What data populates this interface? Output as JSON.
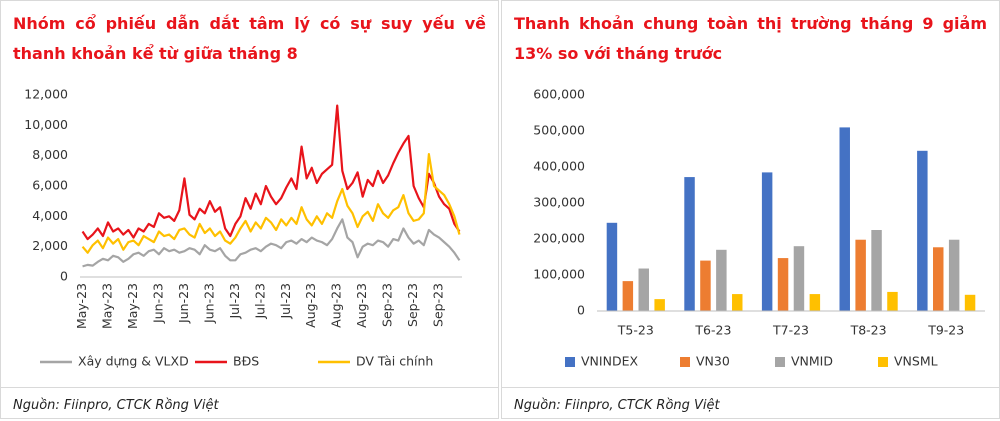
{
  "chart_data": [
    {
      "type": "line",
      "title": "Nhóm cổ phiếu dẫn dắt tâm lý có sự suy yếu về thanh khoản kể từ giữa tháng 8",
      "source": "Nguồn: Fiinpro, CTCK Rồng Việt",
      "categories": [
        "May-23",
        null,
        null,
        null,
        null,
        "May-23",
        null,
        null,
        null,
        null,
        "May-23",
        null,
        null,
        null,
        null,
        "Jun-23",
        null,
        null,
        null,
        null,
        "Jun-23",
        null,
        null,
        null,
        null,
        "Jun-23",
        null,
        null,
        null,
        null,
        "Jul-23",
        null,
        null,
        null,
        null,
        "Jul-23",
        null,
        null,
        null,
        null,
        "Jul-23",
        null,
        null,
        null,
        null,
        "Aug-23",
        null,
        null,
        null,
        null,
        "Aug-23",
        null,
        null,
        null,
        null,
        "Aug-23",
        null,
        null,
        null,
        null,
        "Sep-23",
        null,
        null,
        null,
        null,
        "Sep-23",
        null,
        null,
        null,
        null,
        "Sep-23",
        null,
        null,
        null,
        null
      ],
      "series": [
        {
          "name": "Xây dựng & VLXD",
          "color": "#a5a5a5",
          "values": [
            700,
            800,
            750,
            1000,
            1200,
            1100,
            1400,
            1300,
            1000,
            1200,
            1500,
            1600,
            1400,
            1700,
            1800,
            1500,
            1900,
            1700,
            1800,
            1600,
            1700,
            1900,
            1800,
            1500,
            2100,
            1800,
            1700,
            1900,
            1400,
            1100,
            1100,
            1500,
            1600,
            1800,
            1900,
            1700,
            2000,
            2200,
            2100,
            1900,
            2300,
            2400,
            2200,
            2500,
            2300,
            2600,
            2400,
            2300,
            2100,
            2500,
            3200,
            3800,
            2600,
            2300,
            1300,
            2000,
            2200,
            2100,
            2400,
            2300,
            2000,
            2500,
            2400,
            3200,
            2600,
            2200,
            2400,
            2100,
            3100,
            2800,
            2600,
            2300,
            2000,
            1600,
            1100
          ]
        },
        {
          "name": "BĐS",
          "color": "#e8141b",
          "values": [
            3000,
            2500,
            2800,
            3200,
            2700,
            3600,
            3000,
            3200,
            2800,
            3100,
            2600,
            3200,
            3000,
            3500,
            3300,
            4200,
            3900,
            4000,
            3700,
            4400,
            6500,
            4100,
            3800,
            4500,
            4200,
            5000,
            4300,
            4600,
            3200,
            2700,
            3500,
            4000,
            5200,
            4500,
            5500,
            4800,
            6000,
            5300,
            4800,
            5200,
            5900,
            6500,
            5800,
            8600,
            6500,
            7200,
            6200,
            6800,
            7100,
            7400,
            11300,
            7000,
            5800,
            6200,
            6900,
            5300,
            6400,
            6000,
            7000,
            6200,
            6700,
            7500,
            8200,
            8800,
            9300,
            6000,
            5200,
            4600,
            6800,
            6200,
            5300,
            4800,
            4500,
            3500,
            3000
          ]
        },
        {
          "name": "DV Tài chính",
          "color": "#ffc000",
          "values": [
            2000,
            1600,
            2100,
            2400,
            1900,
            2600,
            2200,
            2500,
            1800,
            2300,
            2400,
            2100,
            2700,
            2500,
            2300,
            3000,
            2700,
            2800,
            2500,
            3100,
            3200,
            2800,
            2600,
            3500,
            2900,
            3200,
            2700,
            3000,
            2400,
            2200,
            2600,
            3200,
            3700,
            3000,
            3600,
            3200,
            3900,
            3600,
            3100,
            3800,
            3400,
            3900,
            3500,
            4600,
            3800,
            3400,
            4000,
            3500,
            4200,
            3900,
            5000,
            5800,
            4700,
            4200,
            3300,
            4000,
            4300,
            3700,
            4800,
            4200,
            3900,
            4400,
            4600,
            5400,
            4200,
            3700,
            3800,
            4200,
            8100,
            6000,
            5700,
            5400,
            4800,
            4000,
            2800
          ]
        }
      ],
      "ylim": [
        0,
        12000
      ],
      "yticks": [
        0,
        {
          "value": 2000,
          "label": "2,000"
        },
        {
          "value": 4000,
          "label": "4,000"
        },
        {
          "value": 6000,
          "label": "6,000"
        },
        {
          "value": 8000,
          "label": "8,000"
        },
        {
          "value": 10000,
          "label": "10,000"
        },
        {
          "value": 12000,
          "label": "12,000"
        }
      ],
      "grid": false,
      "legend": "bottom"
    },
    {
      "type": "bar",
      "title": "Thanh khoản chung toàn thị trường tháng 9 giảm 13% so với tháng trước",
      "source": "Nguồn: Fiinpro, CTCK Rồng Việt",
      "categories": [
        "T5-23",
        "T6-23",
        "T7-23",
        "T8-23",
        "T9-23"
      ],
      "series": [
        {
          "name": "VNINDEX",
          "color": "#4472c4",
          "values": [
            245000,
            372000,
            385000,
            510000,
            445000
          ]
        },
        {
          "name": "VN30",
          "color": "#ed7d31",
          "values": [
            83000,
            140000,
            147000,
            198000,
            177000
          ]
        },
        {
          "name": "VNMID",
          "color": "#a5a5a5",
          "values": [
            118000,
            170000,
            180000,
            225000,
            198000
          ]
        },
        {
          "name": "VNSML",
          "color": "#ffc000",
          "values": [
            33000,
            47000,
            47000,
            53000,
            45000
          ]
        }
      ],
      "ylim": [
        0,
        600000
      ],
      "yticks": [
        0,
        {
          "value": 100000,
          "label": "100,000"
        },
        {
          "value": 200000,
          "label": "200,000"
        },
        {
          "value": 300000,
          "label": "300,000"
        },
        {
          "value": 400000,
          "label": "400,000"
        },
        {
          "value": 500000,
          "label": "500,000"
        },
        {
          "value": 600000,
          "label": "600,000"
        }
      ],
      "grid": false,
      "legend": "bottom"
    }
  ]
}
